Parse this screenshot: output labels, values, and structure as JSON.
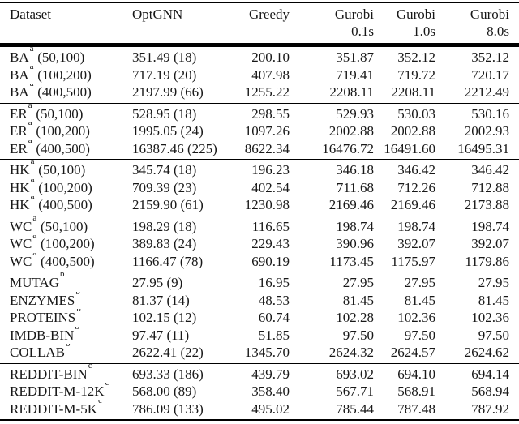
{
  "table": {
    "columns": [
      {
        "label": "Dataset",
        "sublabel": ""
      },
      {
        "label": "OptGNN",
        "sublabel": ""
      },
      {
        "label": "Greedy",
        "sublabel": ""
      },
      {
        "label": "Gurobi",
        "sublabel": "0.1s"
      },
      {
        "label": "Gurobi",
        "sublabel": "1.0s"
      },
      {
        "label": "Gurobi",
        "sublabel": "8.0s"
      }
    ],
    "groups": [
      {
        "id": "ba",
        "rows": [
          {
            "name": "BA",
            "mark": "a",
            "size": "(50,100)",
            "values": [
              "351.49 (18)",
              "200.10",
              "351.87",
              "352.12",
              "352.12"
            ]
          },
          {
            "name": "BA",
            "mark": "a",
            "size": "(100,200)",
            "values": [
              "717.19 (20)",
              "407.98",
              "719.41",
              "719.72",
              "720.17"
            ]
          },
          {
            "name": "BA",
            "mark": "a",
            "size": "(400,500)",
            "values": [
              "2197.99 (66)",
              "1255.22",
              "2208.11",
              "2208.11",
              "2212.49"
            ]
          }
        ]
      },
      {
        "id": "er",
        "rows": [
          {
            "name": "ER",
            "mark": "a",
            "size": "(50,100)",
            "values": [
              "528.95 (18)",
              "298.55",
              "529.93",
              "530.03",
              "530.16"
            ]
          },
          {
            "name": "ER",
            "mark": "a",
            "size": "(100,200)",
            "values": [
              "1995.05 (24)",
              "1097.26",
              "2002.88",
              "2002.88",
              "2002.93"
            ]
          },
          {
            "name": "ER",
            "mark": "a",
            "size": "(400,500)",
            "values": [
              "16387.46 (225)",
              "8622.34",
              "16476.72",
              "16491.60",
              "16495.31"
            ]
          }
        ]
      },
      {
        "id": "hk",
        "rows": [
          {
            "name": "HK",
            "mark": "a",
            "size": "(50,100)",
            "values": [
              "345.74 (18)",
              "196.23",
              "346.18",
              "346.42",
              "346.42"
            ]
          },
          {
            "name": "HK",
            "mark": "a",
            "size": "(100,200)",
            "values": [
              "709.39 (23)",
              "402.54",
              "711.68",
              "712.26",
              "712.88"
            ]
          },
          {
            "name": "HK",
            "mark": "a",
            "size": "(400,500)",
            "values": [
              "2159.90 (61)",
              "1230.98",
              "2169.46",
              "2169.46",
              "2173.88"
            ]
          }
        ]
      },
      {
        "id": "wc",
        "rows": [
          {
            "name": "WC",
            "mark": "a",
            "size": "(50,100)",
            "values": [
              "198.29 (18)",
              "116.65",
              "198.74",
              "198.74",
              "198.74"
            ]
          },
          {
            "name": "WC",
            "mark": "a",
            "size": "(100,200)",
            "values": [
              "389.83 (24)",
              "229.43",
              "390.96",
              "392.07",
              "392.07"
            ]
          },
          {
            "name": "WC",
            "mark": "a",
            "size": "(400,500)",
            "values": [
              "1166.47 (78)",
              "690.19",
              "1173.45",
              "1175.97",
              "1179.86"
            ]
          }
        ]
      },
      {
        "id": "tud",
        "rows": [
          {
            "name": "MUTAG",
            "mark": "b",
            "size": "",
            "values": [
              "27.95 (9)",
              "16.95",
              "27.95",
              "27.95",
              "27.95"
            ]
          },
          {
            "name": "ENZYMES",
            "mark": "b",
            "size": "",
            "values": [
              "81.37 (14)",
              "48.53",
              "81.45",
              "81.45",
              "81.45"
            ]
          },
          {
            "name": "PROTEINS",
            "mark": "b",
            "size": "",
            "values": [
              "102.15 (12)",
              "60.74",
              "102.28",
              "102.36",
              "102.36"
            ]
          },
          {
            "name": "IMDB-BIN",
            "mark": "b",
            "size": "",
            "values": [
              "97.47 (11)",
              "51.85",
              "97.50",
              "97.50",
              "97.50"
            ]
          },
          {
            "name": "COLLAB",
            "mark": "b",
            "size": "",
            "values": [
              "2622.41 (22)",
              "1345.70",
              "2624.32",
              "2624.57",
              "2624.62"
            ]
          }
        ]
      },
      {
        "id": "reddit",
        "rows": [
          {
            "name": "REDDIT-BIN",
            "mark": "c",
            "size": "",
            "values": [
              "693.33 (186)",
              "439.79",
              "693.02",
              "694.10",
              "694.14"
            ]
          },
          {
            "name": "REDDIT-M-12K",
            "mark": "c",
            "size": "",
            "values": [
              "568.00 (89)",
              "358.40",
              "567.71",
              "568.91",
              "568.94"
            ]
          },
          {
            "name": "REDDIT-M-5K",
            "mark": "c",
            "size": "",
            "values": [
              "786.09 (133)",
              "495.02",
              "785.44",
              "787.48",
              "787.92"
            ]
          }
        ]
      }
    ]
  }
}
